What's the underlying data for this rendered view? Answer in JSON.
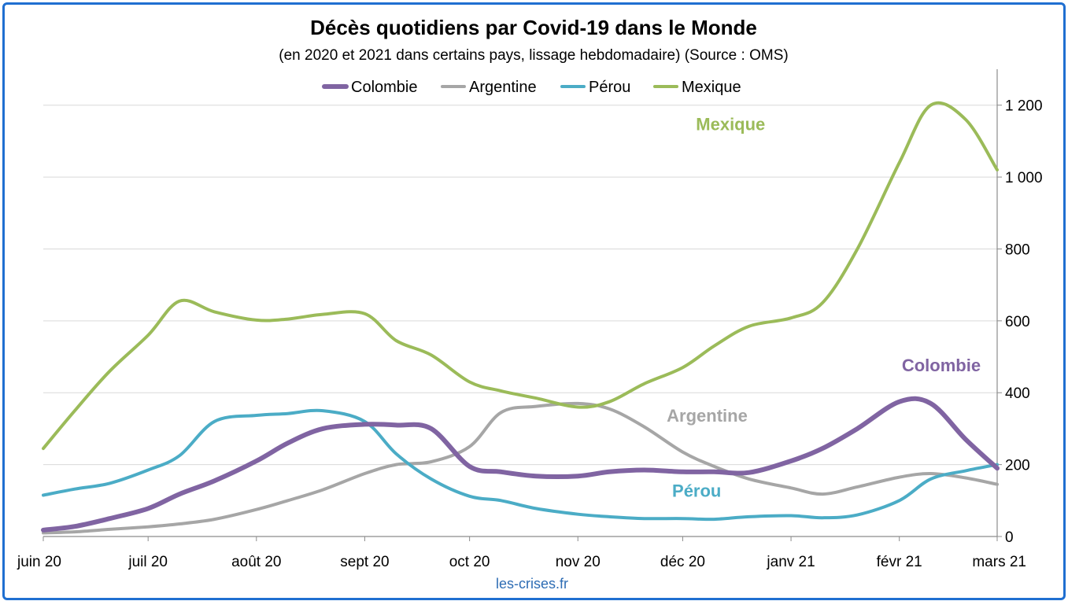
{
  "chart_data": {
    "type": "line",
    "title": "Décès quotidiens par Covid-19 dans le Monde",
    "subtitle": "(en 2020 et 2021 dans certains pays, lissage hebdomadaire) (Source : OMS)",
    "source": "les-crises.fr",
    "x_tick_labels": [
      "juin 20",
      "juil 20",
      "août 20",
      "sept 20",
      "oct 20",
      "nov 20",
      "déc 20",
      "janv 21",
      "févr 21",
      "mars 21"
    ],
    "x_tick_dates": [
      "2020-06-01",
      "2020-07-01",
      "2020-08-01",
      "2020-09-01",
      "2020-10-01",
      "2020-11-01",
      "2020-12-01",
      "2021-01-01",
      "2021-02-01",
      "2021-03-01"
    ],
    "x_range": [
      "2020-06-01",
      "2021-03-01"
    ],
    "y_ticks": [
      0,
      200,
      400,
      600,
      800,
      1000,
      1200
    ],
    "y_tick_labels": [
      "0",
      "200",
      "400",
      "600",
      "800",
      "1 000",
      "1 200"
    ],
    "ylim": [
      0,
      1300
    ],
    "y_axis_position": "right",
    "grid": "horizontal",
    "legend_position": "top",
    "series": [
      {
        "name": "Colombie",
        "color": "#8064a2",
        "annotation": "Colombie",
        "points": [
          [
            "2020-06-01",
            18
          ],
          [
            "2020-06-10",
            28
          ],
          [
            "2020-06-20",
            50
          ],
          [
            "2020-07-01",
            78
          ],
          [
            "2020-07-10",
            118
          ],
          [
            "2020-07-20",
            155
          ],
          [
            "2020-08-01",
            210
          ],
          [
            "2020-08-10",
            260
          ],
          [
            "2020-08-20",
            300
          ],
          [
            "2020-09-01",
            312
          ],
          [
            "2020-09-10",
            310
          ],
          [
            "2020-09-20",
            300
          ],
          [
            "2020-10-01",
            195
          ],
          [
            "2020-10-10",
            180
          ],
          [
            "2020-10-20",
            168
          ],
          [
            "2020-11-01",
            168
          ],
          [
            "2020-11-10",
            180
          ],
          [
            "2020-11-20",
            185
          ],
          [
            "2020-12-01",
            180
          ],
          [
            "2020-12-10",
            180
          ],
          [
            "2020-12-20",
            178
          ],
          [
            "2021-01-01",
            210
          ],
          [
            "2021-01-10",
            245
          ],
          [
            "2021-01-20",
            300
          ],
          [
            "2021-02-01",
            375
          ],
          [
            "2021-02-10",
            370
          ],
          [
            "2021-02-20",
            270
          ],
          [
            "2021-03-01",
            190
          ]
        ]
      },
      {
        "name": "Argentine",
        "color": "#a6a6a6",
        "annotation": "Argentine",
        "points": [
          [
            "2020-06-01",
            10
          ],
          [
            "2020-06-10",
            13
          ],
          [
            "2020-06-20",
            20
          ],
          [
            "2020-07-01",
            27
          ],
          [
            "2020-07-10",
            35
          ],
          [
            "2020-07-20",
            48
          ],
          [
            "2020-08-01",
            75
          ],
          [
            "2020-08-10",
            100
          ],
          [
            "2020-08-20",
            130
          ],
          [
            "2020-09-01",
            175
          ],
          [
            "2020-09-10",
            200
          ],
          [
            "2020-09-20",
            208
          ],
          [
            "2020-10-01",
            250
          ],
          [
            "2020-10-10",
            345
          ],
          [
            "2020-10-20",
            362
          ],
          [
            "2020-11-01",
            370
          ],
          [
            "2020-11-10",
            355
          ],
          [
            "2020-11-20",
            305
          ],
          [
            "2020-12-01",
            235
          ],
          [
            "2020-12-10",
            195
          ],
          [
            "2020-12-20",
            160
          ],
          [
            "2021-01-01",
            135
          ],
          [
            "2021-01-10",
            118
          ],
          [
            "2021-01-20",
            138
          ],
          [
            "2021-02-01",
            165
          ],
          [
            "2021-02-10",
            175
          ],
          [
            "2021-02-20",
            163
          ],
          [
            "2021-03-01",
            145
          ]
        ]
      },
      {
        "name": "Pérou",
        "color": "#4bacc6",
        "annotation": "Pérou",
        "points": [
          [
            "2020-06-01",
            115
          ],
          [
            "2020-06-10",
            132
          ],
          [
            "2020-06-20",
            148
          ],
          [
            "2020-07-01",
            185
          ],
          [
            "2020-07-10",
            225
          ],
          [
            "2020-07-20",
            320
          ],
          [
            "2020-08-01",
            337
          ],
          [
            "2020-08-10",
            342
          ],
          [
            "2020-08-20",
            350
          ],
          [
            "2020-09-01",
            320
          ],
          [
            "2020-09-10",
            230
          ],
          [
            "2020-09-20",
            160
          ],
          [
            "2020-10-01",
            112
          ],
          [
            "2020-10-10",
            100
          ],
          [
            "2020-10-20",
            78
          ],
          [
            "2020-11-01",
            62
          ],
          [
            "2020-11-10",
            55
          ],
          [
            "2020-11-20",
            50
          ],
          [
            "2020-12-01",
            50
          ],
          [
            "2020-12-10",
            48
          ],
          [
            "2020-12-20",
            55
          ],
          [
            "2021-01-01",
            58
          ],
          [
            "2021-01-10",
            52
          ],
          [
            "2021-01-20",
            60
          ],
          [
            "2021-02-01",
            100
          ],
          [
            "2021-02-10",
            160
          ],
          [
            "2021-02-20",
            183
          ],
          [
            "2021-03-01",
            200
          ]
        ]
      },
      {
        "name": "Mexique",
        "color": "#9bbb59",
        "annotation": "Mexique",
        "points": [
          [
            "2020-06-01",
            245
          ],
          [
            "2020-06-10",
            350
          ],
          [
            "2020-06-20",
            460
          ],
          [
            "2020-07-01",
            560
          ],
          [
            "2020-07-10",
            655
          ],
          [
            "2020-07-20",
            625
          ],
          [
            "2020-08-01",
            602
          ],
          [
            "2020-08-10",
            605
          ],
          [
            "2020-08-20",
            618
          ],
          [
            "2020-09-01",
            620
          ],
          [
            "2020-09-10",
            545
          ],
          [
            "2020-09-20",
            505
          ],
          [
            "2020-10-01",
            430
          ],
          [
            "2020-10-10",
            405
          ],
          [
            "2020-10-20",
            385
          ],
          [
            "2020-11-01",
            360
          ],
          [
            "2020-11-10",
            375
          ],
          [
            "2020-11-20",
            425
          ],
          [
            "2020-12-01",
            470
          ],
          [
            "2020-12-10",
            530
          ],
          [
            "2020-12-20",
            585
          ],
          [
            "2021-01-01",
            608
          ],
          [
            "2021-01-10",
            650
          ],
          [
            "2021-01-20",
            800
          ],
          [
            "2021-02-01",
            1040
          ],
          [
            "2021-02-10",
            1200
          ],
          [
            "2021-02-20",
            1160
          ],
          [
            "2021-03-01",
            1020
          ]
        ]
      }
    ]
  }
}
